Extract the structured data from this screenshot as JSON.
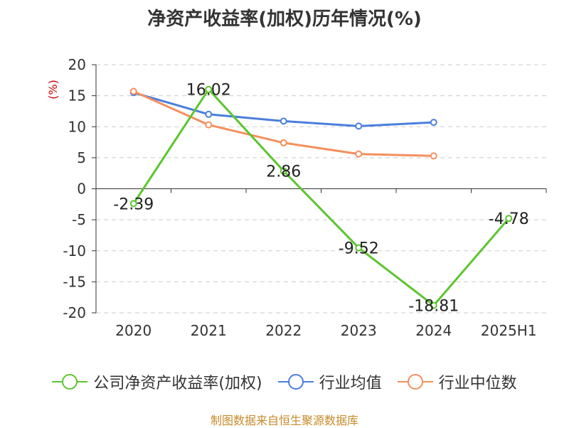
{
  "colors": {
    "company": "#5cc52e",
    "industry_avg": "#4a7fdc",
    "industry_median": "#f58f5e",
    "source": "#c58b2a",
    "ylabel": "#cc0000"
  },
  "chart_data": {
    "type": "line",
    "title": "净资产收益率(加权)历年情况(%)",
    "ylabel": "(%)",
    "xlabel": "",
    "categories": [
      "2020",
      "2021",
      "2022",
      "2023",
      "2024",
      "2025H1"
    ],
    "ylim": [
      -20,
      20
    ],
    "yticks": [
      20,
      15,
      10,
      5,
      0,
      -5,
      -10,
      -15,
      -20
    ],
    "grid": true,
    "legend_position": "bottom",
    "series": [
      {
        "name": "公司净资产收益率(加权)",
        "values": [
          -2.39,
          16.02,
          2.86,
          -9.52,
          -18.81,
          -4.78
        ],
        "labels": [
          "-2.39",
          "16.02",
          "2.86",
          "-9.52",
          "-18.81",
          "-4.78"
        ],
        "color_key": "company"
      },
      {
        "name": "行业均值",
        "values": [
          15.5,
          12.0,
          10.9,
          10.1,
          10.7,
          null
        ],
        "color_key": "industry_avg"
      },
      {
        "name": "行业中位数",
        "values": [
          15.7,
          10.3,
          7.4,
          5.6,
          5.3,
          null
        ],
        "color_key": "industry_median"
      }
    ]
  },
  "source": "制图数据来自恒生聚源数据库"
}
